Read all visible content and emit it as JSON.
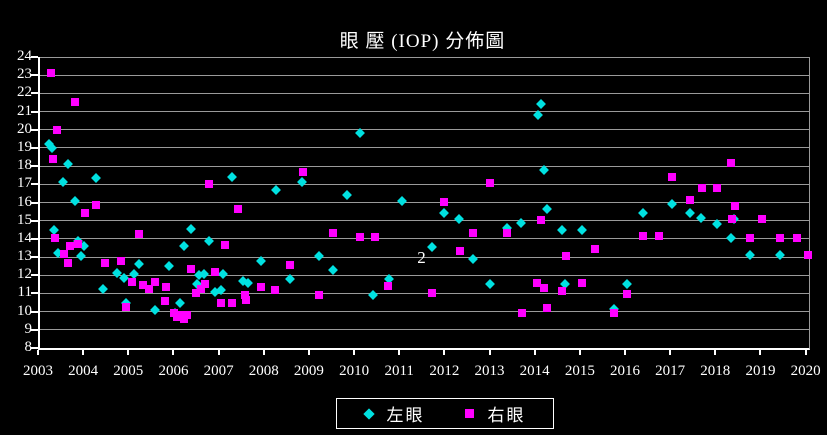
{
  "title": "眼 壓 (IOP) 分佈圖",
  "colors": {
    "background": "#000000",
    "left_eye": "#00e1e1",
    "right_eye": "#ff00ff",
    "grid": "#9a9a9a",
    "axis": "#ffffff",
    "text": "#ffffff"
  },
  "legend": {
    "left_label": "左眼",
    "right_label": "右眼"
  },
  "chart_data": {
    "type": "scatter",
    "title": "眼 壓 (IOP) 分佈圖",
    "xlabel": "",
    "ylabel": "",
    "xlim": [
      2003,
      2020
    ],
    "ylim": [
      8,
      24
    ],
    "x_ticks": [
      2003,
      2004,
      2005,
      2006,
      2007,
      2008,
      2009,
      2010,
      2011,
      2012,
      2013,
      2014,
      2015,
      2016,
      2017,
      2018,
      2019,
      2020
    ],
    "y_ticks": [
      24,
      23,
      22,
      21,
      20,
      19,
      18,
      17,
      16,
      15,
      14,
      13,
      12,
      11,
      10,
      9,
      8
    ],
    "grid": true,
    "legend_position": "bottom",
    "annotations": [
      {
        "text": "2",
        "x": 2011.45,
        "y": 12.95
      }
    ],
    "series": [
      {
        "name": "左眼",
        "marker": "diamond",
        "color": "#00e1e1",
        "points": [
          [
            2003.21,
            19.2
          ],
          [
            2003.27,
            19.0
          ],
          [
            2003.31,
            14.5
          ],
          [
            2003.4,
            13.25
          ],
          [
            2003.5,
            17.15
          ],
          [
            2003.62,
            18.1
          ],
          [
            2003.77,
            16.1
          ],
          [
            2003.84,
            13.9
          ],
          [
            2003.9,
            13.05
          ],
          [
            2003.97,
            13.6
          ],
          [
            2004.23,
            17.35
          ],
          [
            2004.4,
            11.25
          ],
          [
            2004.7,
            12.1
          ],
          [
            2004.86,
            11.85
          ],
          [
            2004.9,
            10.5
          ],
          [
            2005.08,
            12.05
          ],
          [
            2005.2,
            12.6
          ],
          [
            2005.54,
            10.1
          ],
          [
            2005.86,
            12.5
          ],
          [
            2005.98,
            9.9
          ],
          [
            2006.09,
            10.5
          ],
          [
            2006.19,
            13.6
          ],
          [
            2006.34,
            14.55
          ],
          [
            2006.47,
            11.5
          ],
          [
            2006.53,
            12.0
          ],
          [
            2006.63,
            12.05
          ],
          [
            2006.75,
            13.9
          ],
          [
            2006.88,
            11.1
          ],
          [
            2007.01,
            11.2
          ],
          [
            2007.06,
            12.05
          ],
          [
            2007.25,
            17.4
          ],
          [
            2007.5,
            11.7
          ],
          [
            2007.6,
            11.55
          ],
          [
            2007.9,
            12.8
          ],
          [
            2008.22,
            16.7
          ],
          [
            2008.54,
            11.8
          ],
          [
            2008.81,
            17.15
          ],
          [
            2009.18,
            13.05
          ],
          [
            2009.49,
            12.3
          ],
          [
            2009.81,
            16.4
          ],
          [
            2010.08,
            19.8
          ],
          [
            2010.38,
            10.9
          ],
          [
            2010.72,
            11.8
          ],
          [
            2011.01,
            16.1
          ],
          [
            2011.68,
            13.55
          ],
          [
            2011.94,
            15.4
          ],
          [
            2012.27,
            15.1
          ],
          [
            2012.6,
            12.9
          ],
          [
            2012.96,
            11.5
          ],
          [
            2013.35,
            14.6
          ],
          [
            2013.66,
            14.9
          ],
          [
            2014.03,
            20.8
          ],
          [
            2014.1,
            21.4
          ],
          [
            2014.16,
            17.8
          ],
          [
            2014.23,
            15.65
          ],
          [
            2014.57,
            14.5
          ],
          [
            2014.63,
            11.5
          ],
          [
            2015.0,
            14.5
          ],
          [
            2015.72,
            10.15
          ],
          [
            2016.01,
            11.5
          ],
          [
            2016.35,
            15.45
          ],
          [
            2017.0,
            15.9
          ],
          [
            2017.4,
            15.45
          ],
          [
            2017.64,
            15.15
          ],
          [
            2018.0,
            14.8
          ],
          [
            2018.3,
            14.05
          ],
          [
            2018.36,
            15.1
          ],
          [
            2018.73,
            13.1
          ],
          [
            2019.39,
            13.1
          ]
        ]
      },
      {
        "name": "右眼",
        "marker": "square",
        "color": "#ff00ff",
        "points": [
          [
            2003.24,
            23.1
          ],
          [
            2003.29,
            18.4
          ],
          [
            2003.33,
            14.05
          ],
          [
            2003.38,
            20.0
          ],
          [
            2003.53,
            13.15
          ],
          [
            2003.61,
            12.7
          ],
          [
            2003.67,
            13.6
          ],
          [
            2003.77,
            21.55
          ],
          [
            2003.84,
            13.7
          ],
          [
            2004.0,
            15.4
          ],
          [
            2004.23,
            15.85
          ],
          [
            2004.43,
            12.65
          ],
          [
            2004.8,
            12.8
          ],
          [
            2004.9,
            10.25
          ],
          [
            2005.04,
            11.65
          ],
          [
            2005.19,
            14.25
          ],
          [
            2005.28,
            11.45
          ],
          [
            2005.41,
            11.25
          ],
          [
            2005.54,
            11.65
          ],
          [
            2005.77,
            10.6
          ],
          [
            2005.79,
            11.35
          ],
          [
            2005.97,
            9.9
          ],
          [
            2006.03,
            9.7
          ],
          [
            2006.12,
            9.8
          ],
          [
            2006.18,
            9.6
          ],
          [
            2006.26,
            9.8
          ],
          [
            2006.34,
            12.35
          ],
          [
            2006.46,
            11.0
          ],
          [
            2006.56,
            11.25
          ],
          [
            2006.66,
            11.5
          ],
          [
            2006.74,
            17.0
          ],
          [
            2006.88,
            12.2
          ],
          [
            2007.01,
            10.45
          ],
          [
            2007.1,
            13.65
          ],
          [
            2007.25,
            10.5
          ],
          [
            2007.38,
            15.65
          ],
          [
            2007.55,
            10.9
          ],
          [
            2007.57,
            10.65
          ],
          [
            2007.9,
            11.35
          ],
          [
            2008.21,
            11.2
          ],
          [
            2008.53,
            12.55
          ],
          [
            2008.83,
            17.7
          ],
          [
            2009.19,
            10.9
          ],
          [
            2009.5,
            14.3
          ],
          [
            2010.08,
            14.1
          ],
          [
            2010.42,
            14.1
          ],
          [
            2010.7,
            11.4
          ],
          [
            2011.68,
            11.05
          ],
          [
            2011.94,
            16.05
          ],
          [
            2012.3,
            13.35
          ],
          [
            2012.6,
            14.35
          ],
          [
            2012.96,
            17.05
          ],
          [
            2013.35,
            14.3
          ],
          [
            2013.67,
            9.95
          ],
          [
            2014.01,
            11.55
          ],
          [
            2014.1,
            15.05
          ],
          [
            2014.16,
            11.3
          ],
          [
            2014.23,
            10.2
          ],
          [
            2014.57,
            11.15
          ],
          [
            2014.64,
            13.05
          ],
          [
            2015.0,
            11.6
          ],
          [
            2015.3,
            13.45
          ],
          [
            2015.72,
            9.9
          ],
          [
            2016.01,
            10.95
          ],
          [
            2016.35,
            14.15
          ],
          [
            2016.7,
            14.15
          ],
          [
            2017.0,
            17.4
          ],
          [
            2017.4,
            16.15
          ],
          [
            2017.66,
            16.8
          ],
          [
            2018.0,
            16.8
          ],
          [
            2018.3,
            18.15
          ],
          [
            2018.33,
            15.1
          ],
          [
            2018.4,
            15.8
          ],
          [
            2018.73,
            14.05
          ],
          [
            2019.0,
            15.1
          ],
          [
            2019.39,
            14.05
          ],
          [
            2019.76,
            14.05
          ],
          [
            2020.0,
            13.1
          ]
        ]
      }
    ]
  }
}
